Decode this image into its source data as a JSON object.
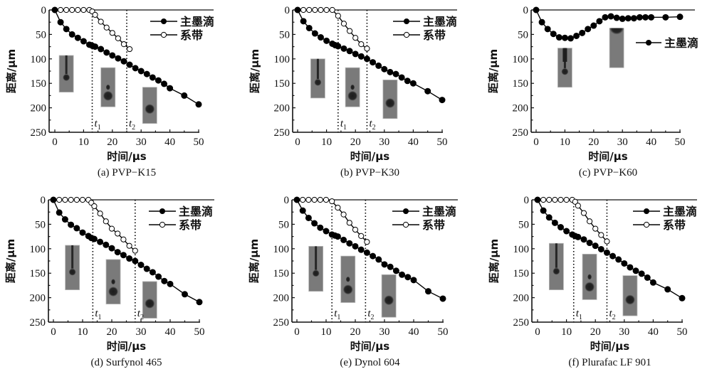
{
  "colors": {
    "axis": "#111111",
    "series_main": "#000000",
    "series_ligament": "#ffffff",
    "inset_bg": "#7a7a7a",
    "inset_drop": "#1c1c1c"
  },
  "legend": {
    "main": "主墨滴",
    "ligament": "系带"
  },
  "axis_text": {
    "xlabel": "时间/μs",
    "ylabel": "距离/μm",
    "t1": "t",
    "t1_sub": "1",
    "t2": "t",
    "t2_sub": "2"
  },
  "chart_data": [
    {
      "type": "line",
      "caption": "(a) PVP−K15",
      "xlabel": "时间/μs",
      "ylabel": "距离/μm",
      "xlim": [
        0,
        50
      ],
      "ylim": [
        0,
        250
      ],
      "y_inverted": true,
      "xticks": [
        0,
        10,
        20,
        30,
        40,
        50
      ],
      "yticks": [
        0,
        50,
        100,
        150,
        200,
        250
      ],
      "t1": 13,
      "t2": 25,
      "legend": "top-right",
      "series": [
        {
          "name": "主墨滴",
          "marker": "filled",
          "x": [
            0,
            2,
            4,
            6,
            8,
            10,
            12,
            13,
            14,
            16,
            18,
            20,
            22,
            24,
            26,
            28,
            30,
            32,
            34,
            36,
            38,
            40,
            45,
            50
          ],
          "y": [
            0,
            25,
            39,
            50,
            57,
            64,
            71,
            73,
            75,
            80,
            87,
            93,
            99,
            105,
            112,
            119,
            125,
            131,
            138,
            144,
            151,
            160,
            175,
            193
          ]
        },
        {
          "name": "系带",
          "marker": "open",
          "x": [
            0,
            2,
            4,
            6,
            8,
            10,
            12,
            13,
            14,
            16,
            18,
            20,
            22,
            24,
            26
          ],
          "y": [
            0,
            0,
            0,
            0,
            0,
            0,
            0,
            3,
            10,
            24,
            36,
            47,
            58,
            70,
            80
          ]
        }
      ],
      "insets": [
        {
          "x": 4,
          "y_top": 93,
          "y_bottom": 168,
          "stage": "neck"
        },
        {
          "x": 18.5,
          "y_top": 118,
          "y_bottom": 198,
          "stage": "satellite"
        },
        {
          "x": 33,
          "y_top": 158,
          "y_bottom": 232,
          "stage": "drop"
        }
      ]
    },
    {
      "type": "line",
      "caption": "(b) PVP−K30",
      "xlabel": "时间/μs",
      "ylabel": "距离/μm",
      "xlim": [
        0,
        50
      ],
      "ylim": [
        0,
        250
      ],
      "y_inverted": true,
      "xticks": [
        0,
        10,
        20,
        30,
        40,
        50
      ],
      "yticks": [
        0,
        50,
        100,
        150,
        200,
        250
      ],
      "t1": 14,
      "t2": 24,
      "legend": "top-right",
      "series": [
        {
          "name": "主墨滴",
          "marker": "filled",
          "x": [
            0,
            2,
            4,
            6,
            8,
            10,
            12,
            13,
            14,
            16,
            18,
            20,
            22,
            24,
            26,
            28,
            30,
            32,
            34,
            36,
            38,
            40,
            45,
            50
          ],
          "y": [
            0,
            23,
            37,
            48,
            56,
            63,
            69,
            72,
            74,
            79,
            84,
            90,
            95,
            100,
            107,
            114,
            121,
            127,
            131,
            138,
            145,
            150,
            166,
            184
          ]
        },
        {
          "name": "系带",
          "marker": "open",
          "x": [
            0,
            2,
            4,
            6,
            8,
            10,
            12,
            14,
            16,
            18,
            20,
            22,
            24
          ],
          "y": [
            0,
            0,
            0,
            0,
            0,
            0,
            0,
            12,
            28,
            43,
            57,
            70,
            79
          ]
        }
      ],
      "insets": [
        {
          "x": 7,
          "y_top": 100,
          "y_bottom": 180,
          "stage": "neck"
        },
        {
          "x": 19,
          "y_top": 118,
          "y_bottom": 198,
          "stage": "satellite"
        },
        {
          "x": 32,
          "y_top": 143,
          "y_bottom": 222,
          "stage": "drop"
        }
      ]
    },
    {
      "type": "line",
      "caption": "(c) PVP−K60",
      "xlabel": "时间/μs",
      "ylabel": "距离/μm",
      "xlim": [
        0,
        50
      ],
      "ylim": [
        0,
        250
      ],
      "y_inverted": true,
      "xticks": [
        0,
        10,
        20,
        30,
        40,
        50
      ],
      "yticks": [
        0,
        50,
        100,
        150,
        200,
        250
      ],
      "legend": "right",
      "series": [
        {
          "name": "主墨滴",
          "marker": "filled",
          "x": [
            0,
            2,
            4,
            6,
            8,
            10,
            12,
            14,
            16,
            18,
            20,
            22,
            24,
            26,
            28,
            30,
            32,
            34,
            36,
            38,
            40,
            45,
            50
          ],
          "y": [
            0,
            25,
            39,
            49,
            56,
            57,
            58,
            53,
            47,
            39,
            32,
            23,
            15,
            13,
            16,
            18,
            17,
            17,
            15,
            15,
            15,
            15,
            14
          ]
        }
      ],
      "insets": [
        {
          "x": 10,
          "y_top": 78,
          "y_bottom": 158,
          "stage": "neck"
        },
        {
          "x": 28,
          "y_top": 37,
          "y_bottom": 118,
          "stage": "retract"
        }
      ]
    },
    {
      "type": "line",
      "caption": "(d) Surfynol 465",
      "xlabel": "时间/μs",
      "ylabel": "距离/μm",
      "xlim": [
        0,
        50
      ],
      "ylim": [
        0,
        250
      ],
      "y_inverted": true,
      "xticks": [
        0,
        10,
        20,
        30,
        40,
        50
      ],
      "yticks": [
        0,
        50,
        100,
        150,
        200,
        250
      ],
      "t1": 13.5,
      "t2": 28,
      "legend": "top-right",
      "series": [
        {
          "name": "主墨滴",
          "marker": "filled",
          "x": [
            0,
            2,
            4,
            6,
            8,
            10,
            12,
            13,
            14,
            16,
            18,
            20,
            22,
            24,
            26,
            28,
            30,
            32,
            34,
            36,
            38,
            40,
            45,
            50
          ],
          "y": [
            0,
            26,
            40,
            51,
            58,
            67,
            74,
            78,
            80,
            86,
            92,
            99,
            107,
            113,
            120,
            125,
            133,
            141,
            148,
            157,
            166,
            172,
            193,
            209
          ]
        },
        {
          "name": "系带",
          "marker": "open",
          "x": [
            0,
            2,
            4,
            6,
            8,
            10,
            12,
            13,
            14,
            16,
            18,
            20,
            22,
            24,
            26,
            28
          ],
          "y": [
            0,
            0,
            0,
            0,
            0,
            0,
            0,
            6,
            13,
            28,
            44,
            59,
            69,
            81,
            94,
            104
          ]
        }
      ],
      "insets": [
        {
          "x": 6.5,
          "y_top": 93,
          "y_bottom": 184,
          "stage": "neck"
        },
        {
          "x": 20.5,
          "y_top": 122,
          "y_bottom": 213,
          "stage": "satellite"
        },
        {
          "x": 33,
          "y_top": 167,
          "y_bottom": 242,
          "stage": "drop"
        }
      ]
    },
    {
      "type": "line",
      "caption": "(e) Dynol 604",
      "xlabel": "时间/μs",
      "ylabel": "距离/μm",
      "xlim": [
        0,
        50
      ],
      "ylim": [
        0,
        250
      ],
      "y_inverted": true,
      "xticks": [
        0,
        10,
        20,
        30,
        40,
        50
      ],
      "yticks": [
        0,
        50,
        100,
        150,
        200,
        250
      ],
      "t1": 12,
      "t2": 23.5,
      "legend": "top-right",
      "series": [
        {
          "name": "主墨滴",
          "marker": "filled",
          "x": [
            0,
            2,
            4,
            6,
            8,
            10,
            12,
            13,
            14,
            16,
            18,
            20,
            22,
            24,
            26,
            28,
            30,
            32,
            34,
            36,
            38,
            40,
            45,
            50
          ],
          "y": [
            0,
            22,
            37,
            48,
            57,
            64,
            71,
            73,
            75,
            82,
            89,
            95,
            102,
            108,
            115,
            122,
            132,
            137,
            145,
            153,
            158,
            164,
            187,
            202
          ]
        },
        {
          "name": "系带",
          "marker": "open",
          "x": [
            0,
            2,
            4,
            6,
            8,
            10,
            12,
            14,
            16,
            18,
            20,
            22,
            24
          ],
          "y": [
            0,
            0,
            0,
            0,
            0,
            0,
            3,
            16,
            30,
            47,
            61,
            74,
            86
          ]
        }
      ],
      "insets": [
        {
          "x": 6.5,
          "y_top": 95,
          "y_bottom": 187,
          "stage": "neck"
        },
        {
          "x": 17.5,
          "y_top": 115,
          "y_bottom": 210,
          "stage": "satellite"
        },
        {
          "x": 31.5,
          "y_top": 153,
          "y_bottom": 240,
          "stage": "drop"
        }
      ]
    },
    {
      "type": "line",
      "caption": "(f) Plurafac LF 901",
      "xlabel": "时间/μs",
      "ylabel": "距离/μm",
      "xlim": [
        0,
        50
      ],
      "ylim": [
        0,
        250
      ],
      "y_inverted": true,
      "xticks": [
        0,
        10,
        20,
        30,
        40,
        50
      ],
      "yticks": [
        0,
        50,
        100,
        150,
        200,
        250
      ],
      "t1": 12.5,
      "t2": 24,
      "legend": "top-right",
      "series": [
        {
          "name": "主墨滴",
          "marker": "filled",
          "x": [
            0,
            2,
            4,
            6,
            8,
            10,
            12,
            13,
            14,
            16,
            18,
            20,
            22,
            24,
            26,
            28,
            30,
            32,
            34,
            36,
            38,
            40,
            45,
            50
          ],
          "y": [
            0,
            22,
            36,
            47,
            56,
            64,
            71,
            74,
            76,
            81,
            88,
            94,
            101,
            108,
            115,
            122,
            130,
            138,
            145,
            151,
            159,
            169,
            183,
            201
          ]
        },
        {
          "name": "系带",
          "marker": "open",
          "x": [
            0,
            2,
            4,
            6,
            8,
            10,
            12,
            13,
            14,
            16,
            18,
            20,
            22,
            24
          ],
          "y": [
            0,
            0,
            0,
            0,
            0,
            0,
            0,
            4,
            12,
            27,
            44,
            59,
            72,
            85
          ]
        }
      ],
      "insets": [
        {
          "x": 6.5,
          "y_top": 89,
          "y_bottom": 184,
          "stage": "neck"
        },
        {
          "x": 18,
          "y_top": 111,
          "y_bottom": 204,
          "stage": "satellite"
        },
        {
          "x": 32,
          "y_top": 155,
          "y_bottom": 237,
          "stage": "drop"
        }
      ]
    }
  ]
}
